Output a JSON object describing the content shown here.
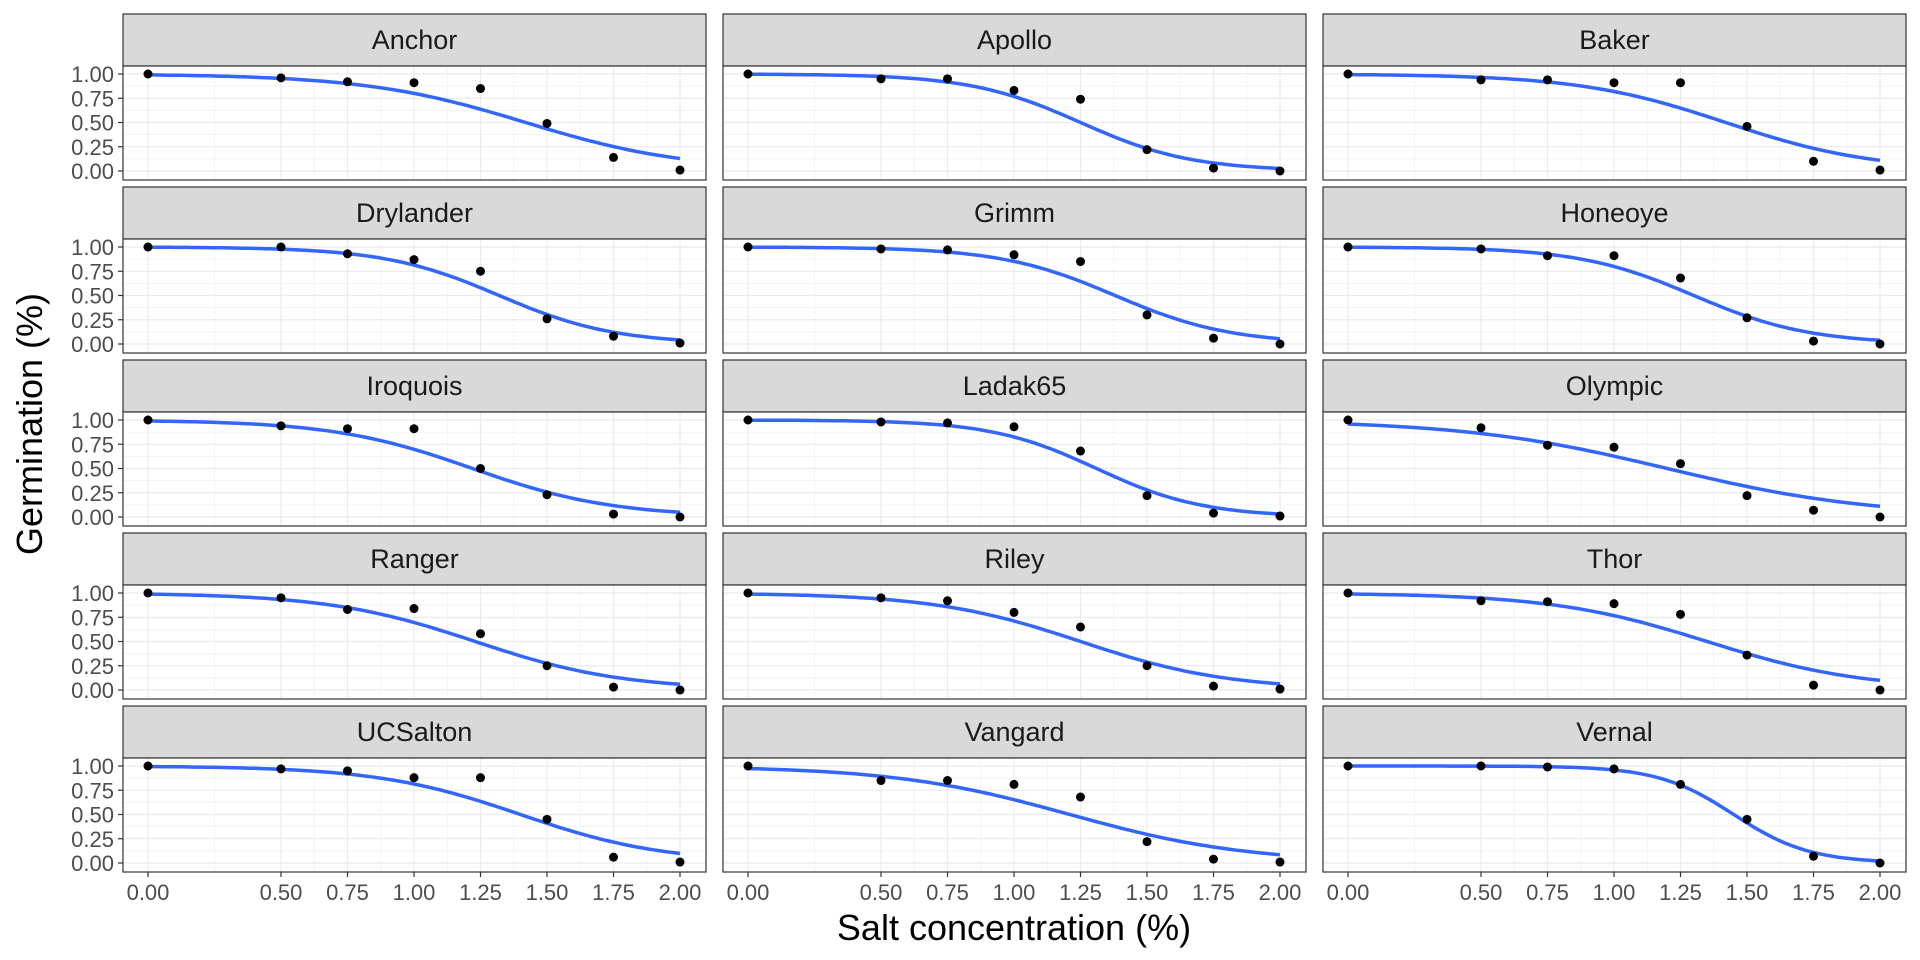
{
  "chart_data": {
    "type": "scatter",
    "layout": "faceted-grid",
    "xlabel": "Salt concentration (%)",
    "ylabel": "Germination (%)",
    "xlim": [
      0,
      2
    ],
    "ylim": [
      0,
      1
    ],
    "x_ticks": [
      "0.00",
      "0.50",
      "0.75",
      "1.00",
      "1.25",
      "1.50",
      "1.75",
      "2.00"
    ],
    "x_tick_values": [
      0,
      0.5,
      0.75,
      1.0,
      1.25,
      1.5,
      1.75,
      2.0
    ],
    "y_ticks": [
      "0.00",
      "0.25",
      "0.50",
      "0.75",
      "1.00"
    ],
    "y_tick_values": [
      0,
      0.25,
      0.5,
      0.75,
      1.0
    ],
    "x": [
      0,
      0.5,
      0.75,
      1.0,
      1.25,
      1.5,
      1.75,
      2.0
    ],
    "grid": true,
    "fit_line": "logistic",
    "colors": {
      "points": "#000000",
      "fit": "#3366ff",
      "strip_bg": "#d9d9d9",
      "grid": "#ebebeb",
      "border": "#333333"
    },
    "panels": [
      {
        "name": "Anchor",
        "values": [
          1.0,
          0.96,
          0.92,
          0.91,
          0.85,
          0.49,
          0.14,
          0.01
        ],
        "fit": {
          "x50": 1.42,
          "slope": 3.3
        }
      },
      {
        "name": "Apollo",
        "values": [
          1.0,
          0.95,
          0.95,
          0.83,
          0.74,
          0.22,
          0.03,
          0.0
        ],
        "fit": {
          "x50": 1.25,
          "slope": 4.8
        }
      },
      {
        "name": "Baker",
        "values": [
          1.0,
          0.94,
          0.94,
          0.91,
          0.91,
          0.46,
          0.1,
          0.01
        ],
        "fit": {
          "x50": 1.42,
          "slope": 3.6
        }
      },
      {
        "name": "Drylander",
        "values": [
          1.0,
          1.0,
          0.93,
          0.87,
          0.75,
          0.26,
          0.08,
          0.01
        ],
        "fit": {
          "x50": 1.32,
          "slope": 4.6
        }
      },
      {
        "name": "Grimm",
        "values": [
          1.0,
          0.98,
          0.97,
          0.92,
          0.85,
          0.3,
          0.06,
          0.0
        ],
        "fit": {
          "x50": 1.38,
          "slope": 4.6
        }
      },
      {
        "name": "Honeoye",
        "values": [
          1.0,
          0.98,
          0.91,
          0.91,
          0.68,
          0.27,
          0.03,
          0.0
        ],
        "fit": {
          "x50": 1.3,
          "slope": 4.6
        }
      },
      {
        "name": "Iroquois",
        "values": [
          1.0,
          0.94,
          0.91,
          0.91,
          0.5,
          0.23,
          0.03,
          0.0
        ],
        "fit": {
          "x50": 1.22,
          "slope": 3.8
        }
      },
      {
        "name": "Ladak65",
        "values": [
          1.0,
          0.98,
          0.97,
          0.93,
          0.68,
          0.22,
          0.04,
          0.01
        ],
        "fit": {
          "x50": 1.31,
          "slope": 5.0
        }
      },
      {
        "name": "Olympic",
        "values": [
          1.0,
          0.92,
          0.74,
          0.72,
          0.55,
          0.22,
          0.07,
          0.0
        ],
        "fit": {
          "x50": 1.2,
          "slope": 2.6
        }
      },
      {
        "name": "Ranger",
        "values": [
          1.0,
          0.95,
          0.83,
          0.84,
          0.58,
          0.25,
          0.03,
          0.0
        ],
        "fit": {
          "x50": 1.23,
          "slope": 3.6
        }
      },
      {
        "name": "Riley",
        "values": [
          1.0,
          0.95,
          0.92,
          0.8,
          0.65,
          0.25,
          0.04,
          0.01
        ],
        "fit": {
          "x50": 1.25,
          "slope": 3.6
        }
      },
      {
        "name": "Thor",
        "values": [
          1.0,
          0.92,
          0.91,
          0.89,
          0.78,
          0.36,
          0.05,
          0.0
        ],
        "fit": {
          "x50": 1.35,
          "slope": 3.4
        }
      },
      {
        "name": "UCSalton",
        "values": [
          1.0,
          0.97,
          0.95,
          0.88,
          0.88,
          0.45,
          0.06,
          0.01
        ],
        "fit": {
          "x50": 1.4,
          "slope": 3.7
        }
      },
      {
        "name": "Vangard",
        "values": [
          1.0,
          0.85,
          0.85,
          0.81,
          0.68,
          0.22,
          0.04,
          0.01
        ],
        "fit": {
          "x50": 1.21,
          "slope": 3.0
        }
      },
      {
        "name": "Vernal",
        "values": [
          1.0,
          1.0,
          0.99,
          0.97,
          0.81,
          0.45,
          0.07,
          0.0
        ],
        "fit": {
          "x50": 1.45,
          "slope": 7.0
        }
      }
    ]
  }
}
